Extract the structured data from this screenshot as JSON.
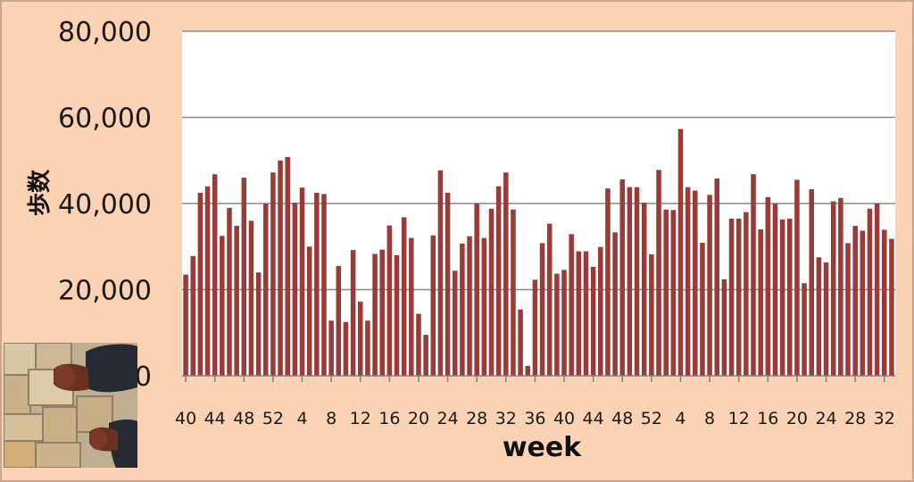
{
  "chart_data": {
    "type": "bar",
    "title": "",
    "xlabel": "week",
    "ylabel": "歩数",
    "ylim": [
      0,
      80000
    ],
    "yticks": [
      0,
      20000,
      40000,
      60000,
      80000
    ],
    "ytick_labels": [
      "0",
      "20,000",
      "40,000",
      "60,000",
      "80,000"
    ],
    "grid": true,
    "legend": "none",
    "bar_color": "#9b3b37",
    "plot_background": "#ffffff",
    "frame_background": "#fbd3b4",
    "xtick_labels": [
      "40",
      "44",
      "48",
      "52",
      "4",
      "8",
      "12",
      "16",
      "20",
      "24",
      "28",
      "32",
      "36",
      "40",
      "44",
      "48",
      "52",
      "4",
      "8",
      "12",
      "16",
      "20",
      "24",
      "28",
      "32"
    ],
    "xtick_every": 4,
    "values": [
      23500,
      27800,
      42500,
      44000,
      46800,
      32500,
      39000,
      34800,
      46000,
      36000,
      24000,
      40000,
      47200,
      50000,
      50800,
      40200,
      43700,
      30000,
      42500,
      42200,
      12800,
      25500,
      12500,
      29200,
      17200,
      12800,
      28300,
      29300,
      34900,
      28000,
      36800,
      32000,
      14400,
      9500,
      32600,
      47700,
      42500,
      24400,
      30700,
      32400,
      40000,
      32000,
      38800,
      44000,
      47200,
      38600,
      15400,
      2300,
      22300,
      30800,
      35300,
      23700,
      24600,
      32900,
      28900,
      28900,
      25300,
      29900,
      43500,
      33300,
      45600,
      43800,
      43800,
      40200,
      28200,
      47800,
      38600,
      38500,
      57300,
      43800,
      43000,
      30900,
      42000,
      45800,
      22400,
      36500,
      36500,
      38000,
      46800,
      34000,
      41500,
      40000,
      36300,
      36500,
      45500,
      21500,
      43300,
      27500,
      26300,
      40500,
      41300,
      30800,
      34800,
      33700,
      38800,
      40000,
      33900,
      31800
    ]
  },
  "photo": {
    "description_icon": "photo-shoes-on-pavement"
  }
}
